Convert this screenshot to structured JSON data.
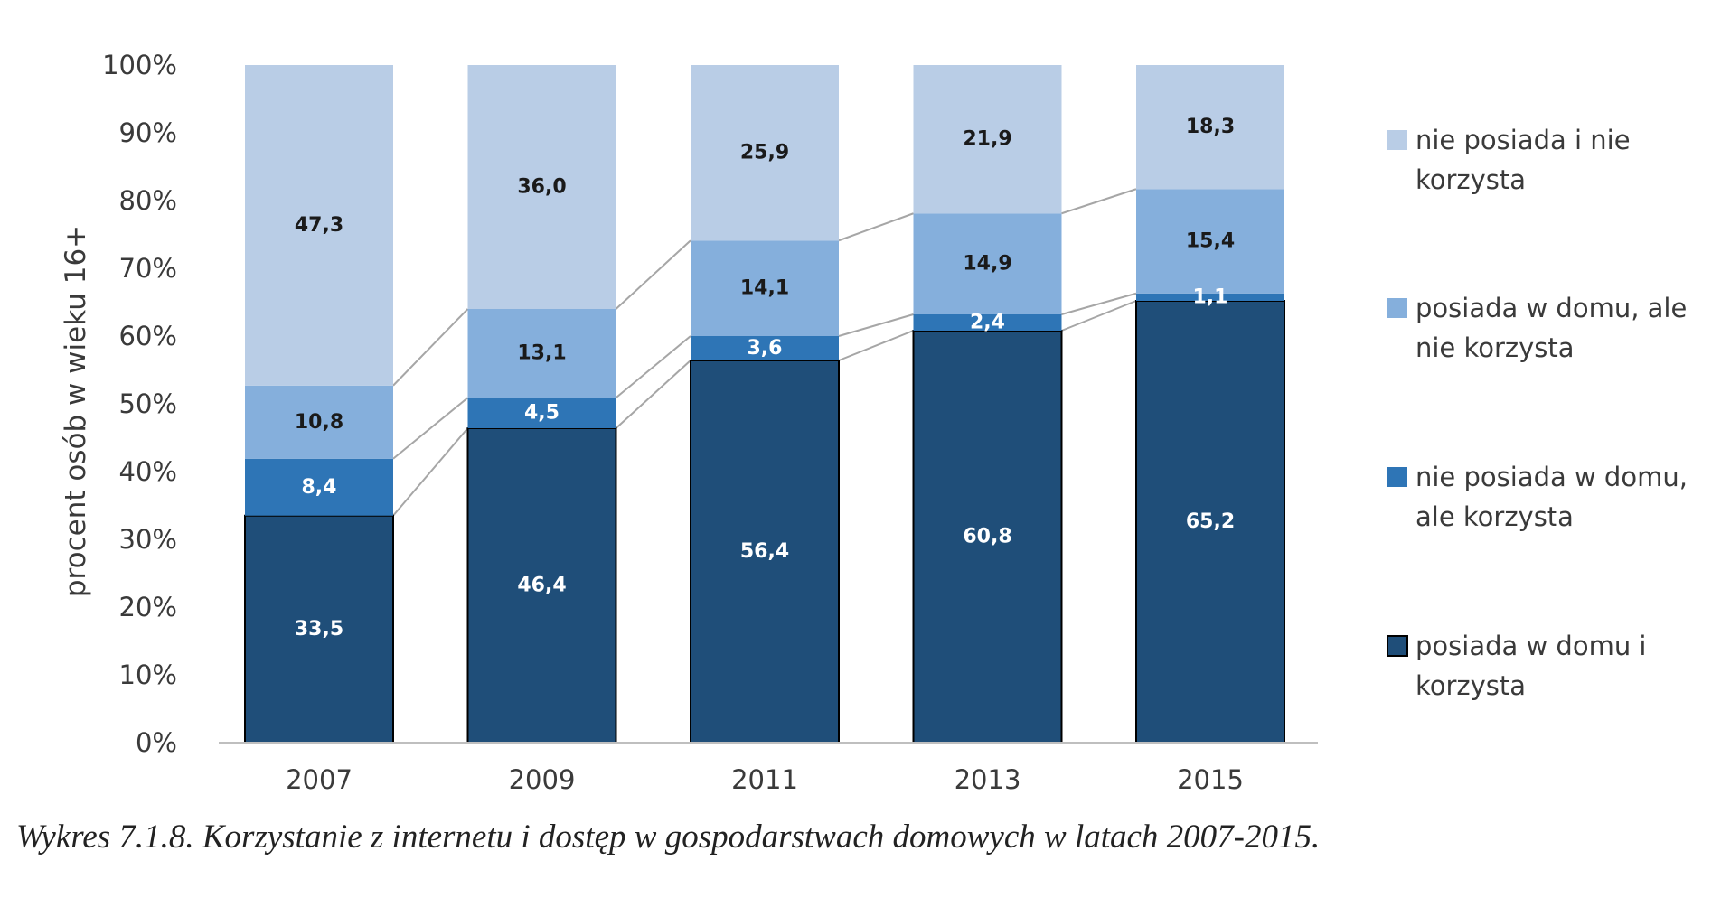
{
  "chart_data": {
    "type": "bar",
    "stacked": true,
    "categories": [
      "2007",
      "2009",
      "2011",
      "2013",
      "2015"
    ],
    "ylabel": "procent osób w wieku 16+",
    "ylim": [
      0,
      100
    ],
    "yticks": [
      "0%",
      "10%",
      "20%",
      "30%",
      "40%",
      "50%",
      "60%",
      "70%",
      "80%",
      "90%",
      "100%"
    ],
    "grid": false,
    "legend_position": "right",
    "series": [
      {
        "name": "posiada w domu i korzysta",
        "legend_lines": [
          "posiada w domu i",
          "korzysta"
        ],
        "values": [
          33.5,
          46.4,
          56.4,
          60.8,
          65.2
        ],
        "labels": [
          "33,5",
          "46,4",
          "56,4",
          "60,8",
          "65,2"
        ],
        "color": "#1f4e79",
        "label_color": "#ffffff"
      },
      {
        "name": "nie posiada w domu, ale korzysta",
        "legend_lines": [
          "nie posiada w domu,",
          "ale korzysta"
        ],
        "values": [
          8.4,
          4.5,
          3.6,
          2.4,
          1.1
        ],
        "labels": [
          "8,4",
          "4,5",
          "3,6",
          "2,4",
          "1,1"
        ],
        "color": "#2e75b6",
        "label_color": "#ffffff"
      },
      {
        "name": "posiada w domu, ale nie korzysta",
        "legend_lines": [
          "posiada w domu, ale",
          "nie korzysta"
        ],
        "values": [
          10.8,
          13.1,
          14.1,
          14.9,
          15.4
        ],
        "labels": [
          "10,8",
          "13,1",
          "14,1",
          "14,9",
          "15,4"
        ],
        "color": "#85afdc",
        "label_color": "#1a1a1a"
      },
      {
        "name": "nie posiada i nie korzysta",
        "legend_lines": [
          "nie posiada i nie",
          "korzysta"
        ],
        "values": [
          47.3,
          36.0,
          25.9,
          21.9,
          18.3
        ],
        "labels": [
          "47,3",
          "36,0",
          "25,9",
          "21,9",
          "18,3"
        ],
        "color": "#b9cde6",
        "label_color": "#1a1a1a"
      }
    ]
  },
  "caption": "Wykres 7.1.8. Korzystanie z internetu i dostęp w gospodarstwach domowych w latach 2007-2015."
}
